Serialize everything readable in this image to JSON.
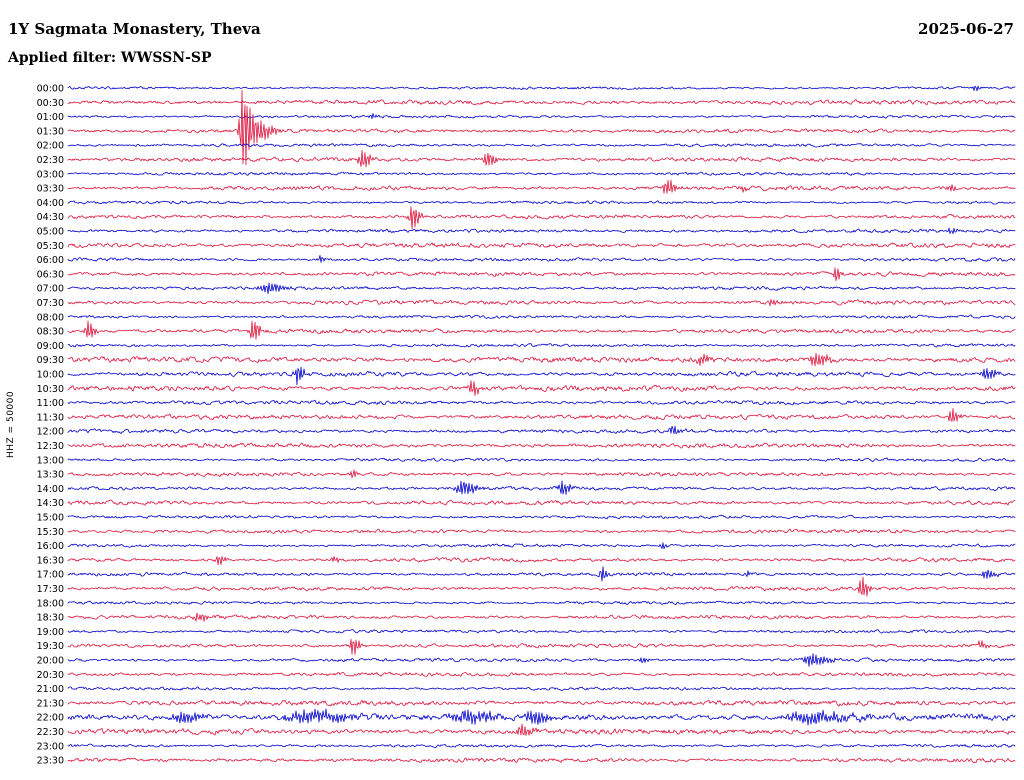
{
  "header": {
    "station": "1Y Sagmata Monastery, Theva",
    "date": "2025-06-27",
    "filter": "Applied filter: WWSSN-SP"
  },
  "y_axis_label": "HHZ = 50000",
  "chart_data": {
    "type": "line",
    "subtype": "helicorder-seismogram-dayplot",
    "station": "1Y Sagmata Monastery, Theva",
    "network": "1Y",
    "channel": "HHZ",
    "scale": 50000,
    "date": "2025-06-27",
    "filter": "WWSSN-SP",
    "minutes_per_row": 30,
    "rows_count": 48,
    "legend_position": "none",
    "grid": false,
    "colors": {
      "blue": "#0000cc",
      "red": "#dc143c",
      "text": "#000000",
      "background": "#ffffff"
    },
    "rows": [
      {
        "time": "00:00",
        "color": "blue",
        "noise": 0.7,
        "events": [
          {
            "frac": 0.957,
            "amp": 4,
            "width": 2
          }
        ]
      },
      {
        "time": "00:30",
        "color": "red",
        "noise": 1.2,
        "events": []
      },
      {
        "time": "01:00",
        "color": "blue",
        "noise": 0.7,
        "events": [
          {
            "frac": 0.32,
            "amp": 3,
            "width": 3
          }
        ]
      },
      {
        "time": "01:30",
        "color": "red",
        "noise": 1.0,
        "events": [
          {
            "frac": 0.184,
            "amp": 40,
            "width": 3
          },
          {
            "frac": 0.196,
            "amp": 12,
            "width": 8
          }
        ]
      },
      {
        "time": "02:00",
        "color": "blue",
        "noise": 0.8,
        "events": []
      },
      {
        "time": "02:30",
        "color": "red",
        "noise": 1.1,
        "events": [
          {
            "frac": 0.31,
            "amp": 9,
            "width": 4
          },
          {
            "frac": 0.442,
            "amp": 7,
            "width": 4
          }
        ]
      },
      {
        "time": "03:00",
        "color": "blue",
        "noise": 0.8,
        "events": []
      },
      {
        "time": "03:30",
        "color": "red",
        "noise": 1.1,
        "events": [
          {
            "frac": 0.632,
            "amp": 8,
            "width": 4
          },
          {
            "frac": 0.71,
            "amp": 3,
            "width": 3
          },
          {
            "frac": 0.93,
            "amp": 3,
            "width": 3
          }
        ]
      },
      {
        "time": "04:00",
        "color": "blue",
        "noise": 0.8,
        "events": []
      },
      {
        "time": "04:30",
        "color": "red",
        "noise": 1.0,
        "events": [
          {
            "frac": 0.363,
            "amp": 13,
            "width": 3
          }
        ]
      },
      {
        "time": "05:00",
        "color": "blue",
        "noise": 0.9,
        "events": [
          {
            "frac": 0.93,
            "amp": 3,
            "width": 3
          }
        ]
      },
      {
        "time": "05:30",
        "color": "red",
        "noise": 1.2,
        "events": []
      },
      {
        "time": "06:00",
        "color": "blue",
        "noise": 0.9,
        "events": [
          {
            "frac": 0.266,
            "amp": 4,
            "width": 2
          }
        ]
      },
      {
        "time": "06:30",
        "color": "red",
        "noise": 1.1,
        "events": [
          {
            "frac": 0.81,
            "amp": 8,
            "width": 2
          }
        ]
      },
      {
        "time": "07:00",
        "color": "blue",
        "noise": 0.9,
        "events": [
          {
            "frac": 0.21,
            "amp": 5,
            "width": 8
          }
        ]
      },
      {
        "time": "07:30",
        "color": "red",
        "noise": 1.1,
        "events": [
          {
            "frac": 0.742,
            "amp": 4,
            "width": 3
          }
        ]
      },
      {
        "time": "08:00",
        "color": "blue",
        "noise": 0.8,
        "events": []
      },
      {
        "time": "08:30",
        "color": "red",
        "noise": 1.1,
        "events": [
          {
            "frac": 0.021,
            "amp": 9,
            "width": 3
          },
          {
            "frac": 0.195,
            "amp": 11,
            "width": 3
          }
        ]
      },
      {
        "time": "09:00",
        "color": "blue",
        "noise": 0.8,
        "events": []
      },
      {
        "time": "09:30",
        "color": "red",
        "noise": 1.5,
        "events": [
          {
            "frac": 0.668,
            "amp": 5,
            "width": 4
          },
          {
            "frac": 0.789,
            "amp": 7,
            "width": 6
          }
        ]
      },
      {
        "time": "10:00",
        "color": "blue",
        "noise": 1.2,
        "events": [
          {
            "frac": 0.242,
            "amp": 9,
            "width": 3
          },
          {
            "frac": 0.968,
            "amp": 6,
            "width": 5
          }
        ]
      },
      {
        "time": "10:30",
        "color": "red",
        "noise": 1.4,
        "events": [
          {
            "frac": 0.426,
            "amp": 8,
            "width": 3
          }
        ]
      },
      {
        "time": "11:00",
        "color": "blue",
        "noise": 1.0,
        "events": []
      },
      {
        "time": "11:30",
        "color": "red",
        "noise": 1.3,
        "events": [
          {
            "frac": 0.932,
            "amp": 8,
            "width": 3
          }
        ]
      },
      {
        "time": "12:00",
        "color": "blue",
        "noise": 1.0,
        "events": [
          {
            "frac": 0.637,
            "amp": 4,
            "width": 4
          }
        ]
      },
      {
        "time": "12:30",
        "color": "red",
        "noise": 1.2,
        "events": []
      },
      {
        "time": "13:00",
        "color": "blue",
        "noise": 0.8,
        "events": []
      },
      {
        "time": "13:30",
        "color": "red",
        "noise": 1.0,
        "events": [
          {
            "frac": 0.3,
            "amp": 5,
            "width": 2
          }
        ]
      },
      {
        "time": "14:00",
        "color": "blue",
        "noise": 0.9,
        "events": [
          {
            "frac": 0.416,
            "amp": 7,
            "width": 6
          },
          {
            "frac": 0.521,
            "amp": 7,
            "width": 4
          }
        ]
      },
      {
        "time": "14:30",
        "color": "red",
        "noise": 1.1,
        "events": []
      },
      {
        "time": "15:00",
        "color": "blue",
        "noise": 0.8,
        "events": []
      },
      {
        "time": "15:30",
        "color": "red",
        "noise": 1.0,
        "events": []
      },
      {
        "time": "16:00",
        "color": "blue",
        "noise": 0.8,
        "events": [
          {
            "frac": 0.626,
            "amp": 4,
            "width": 2
          }
        ]
      },
      {
        "time": "16:30",
        "color": "red",
        "noise": 1.0,
        "events": [
          {
            "frac": 0.158,
            "amp": 5,
            "width": 3
          },
          {
            "frac": 0.28,
            "amp": 3,
            "width": 3
          }
        ]
      },
      {
        "time": "17:00",
        "color": "blue",
        "noise": 0.9,
        "events": [
          {
            "frac": 0.563,
            "amp": 8,
            "width": 2
          },
          {
            "frac": 0.716,
            "amp": 3,
            "width": 2
          },
          {
            "frac": 0.968,
            "amp": 5,
            "width": 4
          }
        ]
      },
      {
        "time": "17:30",
        "color": "red",
        "noise": 1.0,
        "events": [
          {
            "frac": 0.837,
            "amp": 11,
            "width": 3
          }
        ]
      },
      {
        "time": "18:00",
        "color": "blue",
        "noise": 0.8,
        "events": []
      },
      {
        "time": "18:30",
        "color": "red",
        "noise": 1.0,
        "events": [
          {
            "frac": 0.137,
            "amp": 4,
            "width": 5
          }
        ]
      },
      {
        "time": "19:00",
        "color": "blue",
        "noise": 0.8,
        "events": []
      },
      {
        "time": "19:30",
        "color": "red",
        "noise": 1.0,
        "events": [
          {
            "frac": 0.3,
            "amp": 9,
            "width": 3
          },
          {
            "frac": 0.963,
            "amp": 4,
            "width": 3
          }
        ]
      },
      {
        "time": "20:00",
        "color": "blue",
        "noise": 0.9,
        "events": [
          {
            "frac": 0.605,
            "amp": 3,
            "width": 3
          },
          {
            "frac": 0.784,
            "amp": 6,
            "width": 8
          }
        ]
      },
      {
        "time": "20:30",
        "color": "red",
        "noise": 1.0,
        "events": []
      },
      {
        "time": "21:00",
        "color": "blue",
        "noise": 0.8,
        "events": []
      },
      {
        "time": "21:30",
        "color": "red",
        "noise": 1.4,
        "events": []
      },
      {
        "time": "22:00",
        "color": "blue",
        "noise": 1.8,
        "events": [
          {
            "frac": 0.12,
            "amp": 5,
            "width": 10
          },
          {
            "frac": 0.25,
            "amp": 6,
            "width": 20
          },
          {
            "frac": 0.42,
            "amp": 6,
            "width": 12
          },
          {
            "frac": 0.49,
            "amp": 7,
            "width": 6
          },
          {
            "frac": 0.78,
            "amp": 6,
            "width": 18
          }
        ]
      },
      {
        "time": "22:30",
        "color": "red",
        "noise": 1.5,
        "events": [
          {
            "frac": 0.479,
            "amp": 6,
            "width": 5
          }
        ]
      },
      {
        "time": "23:00",
        "color": "blue",
        "noise": 0.8,
        "events": []
      },
      {
        "time": "23:30",
        "color": "red",
        "noise": 1.1,
        "events": []
      }
    ]
  }
}
